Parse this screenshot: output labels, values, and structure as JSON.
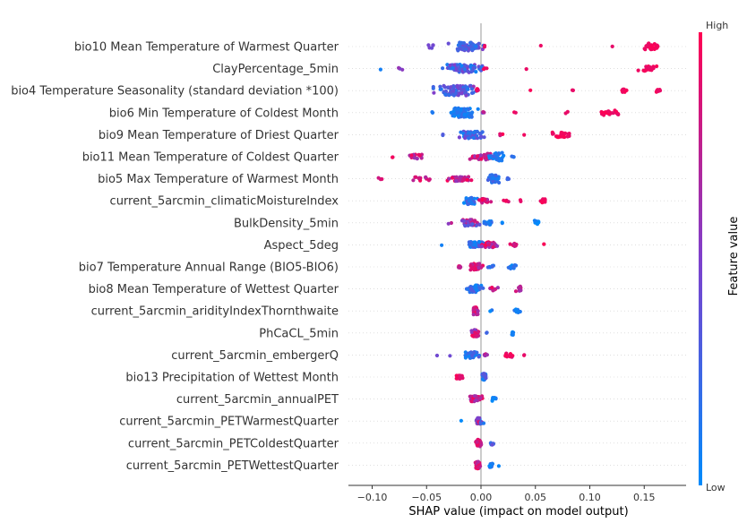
{
  "chart_data": {
    "type": "scatter",
    "subtype": "shap_beeswarm_summary",
    "xlabel": "SHAP value (impact on model output)",
    "xlim": [
      -0.105,
      0.18
    ],
    "xticks": [
      -0.1,
      -0.05,
      0.0,
      0.05,
      0.1,
      0.15
    ],
    "xtick_labels": [
      "−0.10",
      "−0.05",
      "0.00",
      "0.05",
      "0.10",
      "0.15"
    ],
    "colorbar": {
      "title": "Feature value",
      "high_label": "High",
      "low_label": "Low",
      "low_color": "#008bfb",
      "high_color": "#ff0052"
    },
    "features": [
      {
        "name": "bio10 Mean Temperature of Warmest Quarter",
        "clusters": [
          {
            "center": -0.013,
            "spread": 0.022,
            "count": 70,
            "width": 4.5,
            "color": [
              0.1,
              0.5
            ]
          },
          {
            "center": -0.045,
            "spread": 0.005,
            "count": 5,
            "width": 2,
            "color": [
              0.4,
              0.6
            ]
          },
          {
            "center": 0.003,
            "spread": 0.002,
            "count": 2,
            "width": 1,
            "color": [
              0.9,
              1.0
            ]
          },
          {
            "center": 0.055,
            "spread": 0.001,
            "count": 1,
            "width": 1,
            "color": [
              0.9,
              1.0
            ]
          },
          {
            "center": 0.121,
            "spread": 0.001,
            "count": 1,
            "width": 1,
            "color": [
              0.9,
              1.0
            ]
          },
          {
            "center": 0.157,
            "spread": 0.012,
            "count": 30,
            "width": 3.5,
            "color": [
              0.9,
              1.0
            ]
          }
        ]
      },
      {
        "name": "ClayPercentage_5min",
        "clusters": [
          {
            "center": -0.018,
            "spread": 0.024,
            "count": 70,
            "width": 4.5,
            "color": [
              0.05,
              0.55
            ]
          },
          {
            "center": -0.092,
            "spread": 0.002,
            "count": 1,
            "width": 1,
            "color": [
              0.0,
              0.1
            ]
          },
          {
            "center": -0.075,
            "spread": 0.004,
            "count": 3,
            "width": 1.5,
            "color": [
              0.4,
              0.6
            ]
          },
          {
            "center": 0.003,
            "spread": 0.004,
            "count": 3,
            "width": 1.5,
            "color": [
              0.9,
              1.0
            ]
          },
          {
            "center": 0.042,
            "spread": 0.001,
            "count": 1,
            "width": 1,
            "color": [
              0.9,
              1.0
            ]
          },
          {
            "center": 0.153,
            "spread": 0.012,
            "count": 22,
            "width": 3,
            "color": [
              0.9,
              1.0
            ]
          }
        ]
      },
      {
        "name": "bio4 Temperature Seasonality (standard deviation *100)",
        "clusters": [
          {
            "center": -0.023,
            "spread": 0.024,
            "count": 90,
            "width": 5.5,
            "color": [
              0.05,
              0.6
            ]
          },
          {
            "center": -0.003,
            "spread": 0.004,
            "count": 6,
            "width": 2,
            "color": [
              0.7,
              1.0
            ]
          },
          {
            "center": 0.045,
            "spread": 0.001,
            "count": 1,
            "width": 1,
            "color": [
              0.9,
              1.0
            ]
          },
          {
            "center": 0.085,
            "spread": 0.003,
            "count": 2,
            "width": 1,
            "color": [
              0.9,
              1.0
            ]
          },
          {
            "center": 0.132,
            "spread": 0.008,
            "count": 10,
            "width": 2,
            "color": [
              0.9,
              1.0
            ]
          },
          {
            "center": 0.162,
            "spread": 0.004,
            "count": 8,
            "width": 1.5,
            "color": [
              0.9,
              1.0
            ]
          }
        ]
      },
      {
        "name": "bio6 Min Temperature of Coldest Month",
        "clusters": [
          {
            "center": -0.017,
            "spread": 0.017,
            "count": 70,
            "width": 5,
            "color": [
              0.0,
              0.25
            ]
          },
          {
            "center": -0.045,
            "spread": 0.002,
            "count": 2,
            "width": 1,
            "color": [
              0.0,
              0.2
            ]
          },
          {
            "center": 0.003,
            "spread": 0.003,
            "count": 3,
            "width": 1,
            "color": [
              0.4,
              0.8
            ]
          },
          {
            "center": 0.032,
            "spread": 0.002,
            "count": 2,
            "width": 1,
            "color": [
              0.9,
              1.0
            ]
          },
          {
            "center": 0.079,
            "spread": 0.002,
            "count": 2,
            "width": 1,
            "color": [
              0.9,
              1.0
            ]
          },
          {
            "center": 0.118,
            "spread": 0.012,
            "count": 24,
            "width": 3,
            "color": [
              0.9,
              1.0
            ]
          }
        ]
      },
      {
        "name": "bio9 Mean Temperature of Driest Quarter",
        "clusters": [
          {
            "center": -0.01,
            "spread": 0.018,
            "count": 60,
            "width": 4,
            "color": [
              0.0,
              0.5
            ]
          },
          {
            "center": -0.036,
            "spread": 0.002,
            "count": 2,
            "width": 1,
            "color": [
              0.2,
              0.4
            ]
          },
          {
            "center": 0.018,
            "spread": 0.004,
            "count": 3,
            "width": 1,
            "color": [
              0.6,
              1.0
            ]
          },
          {
            "center": 0.04,
            "spread": 0.002,
            "count": 1,
            "width": 1,
            "color": [
              0.9,
              1.0
            ]
          },
          {
            "center": 0.073,
            "spread": 0.015,
            "count": 22,
            "width": 3,
            "color": [
              0.9,
              1.0
            ]
          }
        ]
      },
      {
        "name": "bio11 Mean Temperature of Coldest Quarter",
        "clusters": [
          {
            "center": 0.001,
            "spread": 0.018,
            "count": 45,
            "width": 3.5,
            "color": [
              0.55,
              0.95
            ]
          },
          {
            "center": 0.015,
            "spread": 0.01,
            "count": 35,
            "width": 4.5,
            "color": [
              0.0,
              0.3
            ]
          },
          {
            "center": -0.06,
            "spread": 0.012,
            "count": 18,
            "width": 2.5,
            "color": [
              0.6,
              1.0
            ]
          },
          {
            "center": -0.081,
            "spread": 0.001,
            "count": 2,
            "width": 1,
            "color": [
              0.8,
              1.0
            ]
          },
          {
            "center": 0.03,
            "spread": 0.003,
            "count": 3,
            "width": 1,
            "color": [
              0.0,
              0.2
            ]
          }
        ]
      },
      {
        "name": "bio5 Max Temperature of Warmest Month",
        "clusters": [
          {
            "center": 0.012,
            "spread": 0.008,
            "count": 40,
            "width": 4.5,
            "color": [
              0.0,
              0.3
            ]
          },
          {
            "center": -0.02,
            "spread": 0.018,
            "count": 35,
            "width": 2.5,
            "color": [
              0.55,
              1.0
            ]
          },
          {
            "center": -0.055,
            "spread": 0.012,
            "count": 12,
            "width": 2,
            "color": [
              0.6,
              1.0
            ]
          },
          {
            "center": -0.093,
            "spread": 0.004,
            "count": 3,
            "width": 1,
            "color": [
              0.8,
              1.0
            ]
          },
          {
            "center": 0.025,
            "spread": 0.003,
            "count": 3,
            "width": 1,
            "color": [
              0.1,
              0.3
            ]
          }
        ]
      },
      {
        "name": "current_5arcmin_climaticMoistureIndex",
        "clusters": [
          {
            "center": -0.01,
            "spread": 0.008,
            "count": 40,
            "width": 4,
            "color": [
              0.0,
              0.4
            ]
          },
          {
            "center": 0.005,
            "spread": 0.008,
            "count": 25,
            "width": 2.5,
            "color": [
              0.6,
              1.0
            ]
          },
          {
            "center": 0.022,
            "spread": 0.004,
            "count": 4,
            "width": 1,
            "color": [
              0.8,
              1.0
            ]
          },
          {
            "center": 0.037,
            "spread": 0.003,
            "count": 2,
            "width": 1,
            "color": [
              0.9,
              1.0
            ]
          },
          {
            "center": 0.057,
            "spread": 0.003,
            "count": 10,
            "width": 2,
            "color": [
              0.9,
              1.0
            ]
          }
        ]
      },
      {
        "name": "BulkDensity_5min",
        "clusters": [
          {
            "center": -0.01,
            "spread": 0.01,
            "count": 50,
            "width": 3.5,
            "color": [
              0.3,
              0.95
            ]
          },
          {
            "center": -0.028,
            "spread": 0.003,
            "count": 2,
            "width": 1,
            "color": [
              0.5,
              0.8
            ]
          },
          {
            "center": 0.008,
            "spread": 0.008,
            "count": 12,
            "width": 2,
            "color": [
              0.0,
              0.25
            ]
          },
          {
            "center": 0.02,
            "spread": 0.003,
            "count": 2,
            "width": 1,
            "color": [
              0.0,
              0.2
            ]
          },
          {
            "center": 0.051,
            "spread": 0.003,
            "count": 12,
            "width": 2.5,
            "color": [
              0.0,
              0.1
            ]
          }
        ]
      },
      {
        "name": "Aspect_5deg",
        "clusters": [
          {
            "center": -0.005,
            "spread": 0.012,
            "count": 40,
            "width": 3.5,
            "color": [
              0.0,
              0.4
            ]
          },
          {
            "center": 0.008,
            "spread": 0.01,
            "count": 30,
            "width": 3,
            "color": [
              0.55,
              1.0
            ]
          },
          {
            "center": 0.03,
            "spread": 0.008,
            "count": 8,
            "width": 1.5,
            "color": [
              0.75,
              1.0
            ]
          },
          {
            "center": -0.035,
            "spread": 0.002,
            "count": 1,
            "width": 1,
            "color": [
              0.0,
              0.1
            ]
          },
          {
            "center": 0.057,
            "spread": 0.002,
            "count": 1,
            "width": 1,
            "color": [
              0.9,
              1.0
            ]
          }
        ]
      },
      {
        "name": "bio7 Temperature Annual Range (BIO5-BIO6)",
        "clusters": [
          {
            "center": -0.005,
            "spread": 0.008,
            "count": 40,
            "width": 3.5,
            "color": [
              0.6,
              1.0
            ]
          },
          {
            "center": -0.02,
            "spread": 0.006,
            "count": 6,
            "width": 1.5,
            "color": [
              0.7,
              1.0
            ]
          },
          {
            "center": 0.008,
            "spread": 0.006,
            "count": 6,
            "width": 1.5,
            "color": [
              0.0,
              0.3
            ]
          },
          {
            "center": 0.03,
            "spread": 0.006,
            "count": 10,
            "width": 2,
            "color": [
              0.0,
              0.2
            ]
          }
        ]
      },
      {
        "name": "bio8 Mean Temperature of Wettest Quarter",
        "clusters": [
          {
            "center": -0.006,
            "spread": 0.01,
            "count": 45,
            "width": 4,
            "color": [
              0.0,
              0.35
            ]
          },
          {
            "center": 0.012,
            "spread": 0.006,
            "count": 10,
            "width": 2,
            "color": [
              0.6,
              1.0
            ]
          },
          {
            "center": 0.035,
            "spread": 0.004,
            "count": 12,
            "width": 3,
            "color": [
              0.6,
              0.95
            ]
          }
        ]
      },
      {
        "name": "current_5arcmin_aridityIndexThornthwaite",
        "clusters": [
          {
            "center": -0.005,
            "spread": 0.004,
            "count": 30,
            "width": 4,
            "color": [
              0.6,
              1.0
            ]
          },
          {
            "center": 0.01,
            "spread": 0.002,
            "count": 2,
            "width": 1,
            "color": [
              0.0,
              0.3
            ]
          },
          {
            "center": 0.033,
            "spread": 0.005,
            "count": 12,
            "width": 2,
            "color": [
              0.0,
              0.2
            ]
          }
        ]
      },
      {
        "name": "PhCaCL_5min",
        "clusters": [
          {
            "center": -0.005,
            "spread": 0.005,
            "count": 35,
            "width": 4,
            "color": [
              0.5,
              1.0
            ]
          },
          {
            "center": 0.005,
            "spread": 0.002,
            "count": 2,
            "width": 1,
            "color": [
              0.2,
              0.5
            ]
          },
          {
            "center": 0.029,
            "spread": 0.001,
            "count": 8,
            "width": 2.5,
            "color": [
              0.0,
              0.1
            ]
          }
        ]
      },
      {
        "name": "current_5arcmin_embergerQ",
        "clusters": [
          {
            "center": -0.008,
            "spread": 0.008,
            "count": 45,
            "width": 3.5,
            "color": [
              0.0,
              0.35
            ]
          },
          {
            "center": 0.004,
            "spread": 0.004,
            "count": 6,
            "width": 1.5,
            "color": [
              0.55,
              0.9
            ]
          },
          {
            "center": 0.025,
            "spread": 0.006,
            "count": 12,
            "width": 2.5,
            "color": [
              0.8,
              1.0
            ]
          },
          {
            "center": -0.04,
            "spread": 0.001,
            "count": 1,
            "width": 1,
            "color": [
              0.3,
              0.5
            ]
          },
          {
            "center": -0.028,
            "spread": 0.002,
            "count": 1,
            "width": 1,
            "color": [
              0.3,
              0.5
            ]
          },
          {
            "center": 0.04,
            "spread": 0.001,
            "count": 2,
            "width": 1,
            "color": [
              0.9,
              1.0
            ]
          }
        ]
      },
      {
        "name": "bio13 Precipitation of Wettest Month",
        "clusters": [
          {
            "center": -0.02,
            "spread": 0.005,
            "count": 15,
            "width": 2,
            "color": [
              0.85,
              1.0
            ]
          },
          {
            "center": 0.003,
            "spread": 0.003,
            "count": 25,
            "width": 4,
            "color": [
              0.0,
              0.4
            ]
          }
        ]
      },
      {
        "name": "current_5arcmin_annualPET",
        "clusters": [
          {
            "center": -0.005,
            "spread": 0.008,
            "count": 35,
            "width": 3.5,
            "color": [
              0.6,
              1.0
            ]
          },
          {
            "center": 0.013,
            "spread": 0.004,
            "count": 8,
            "width": 2,
            "color": [
              0.0,
              0.2
            ]
          }
        ]
      },
      {
        "name": "current_5arcmin_PETWarmestQuarter",
        "clusters": [
          {
            "center": -0.002,
            "spread": 0.005,
            "count": 30,
            "width": 3.5,
            "color": [
              0.05,
              0.95
            ]
          },
          {
            "center": -0.018,
            "spread": 0.001,
            "count": 1,
            "width": 1,
            "color": [
              0.0,
              0.1
            ]
          }
        ]
      },
      {
        "name": "current_5arcmin_PETColdestQuarter",
        "clusters": [
          {
            "center": -0.002,
            "spread": 0.004,
            "count": 30,
            "width": 4,
            "color": [
              0.7,
              1.0
            ]
          },
          {
            "center": 0.01,
            "spread": 0.003,
            "count": 8,
            "width": 2,
            "color": [
              0.1,
              0.4
            ]
          }
        ]
      },
      {
        "name": "current_5arcmin_PETWettestQuarter",
        "clusters": [
          {
            "center": -0.003,
            "spread": 0.004,
            "count": 30,
            "width": 4,
            "color": [
              0.6,
              1.0
            ]
          },
          {
            "center": 0.01,
            "spread": 0.003,
            "count": 10,
            "width": 2.5,
            "color": [
              0.0,
              0.3
            ]
          },
          {
            "center": 0.017,
            "spread": 0.001,
            "count": 1,
            "width": 1,
            "color": [
              0.0,
              0.1
            ]
          }
        ]
      }
    ]
  }
}
